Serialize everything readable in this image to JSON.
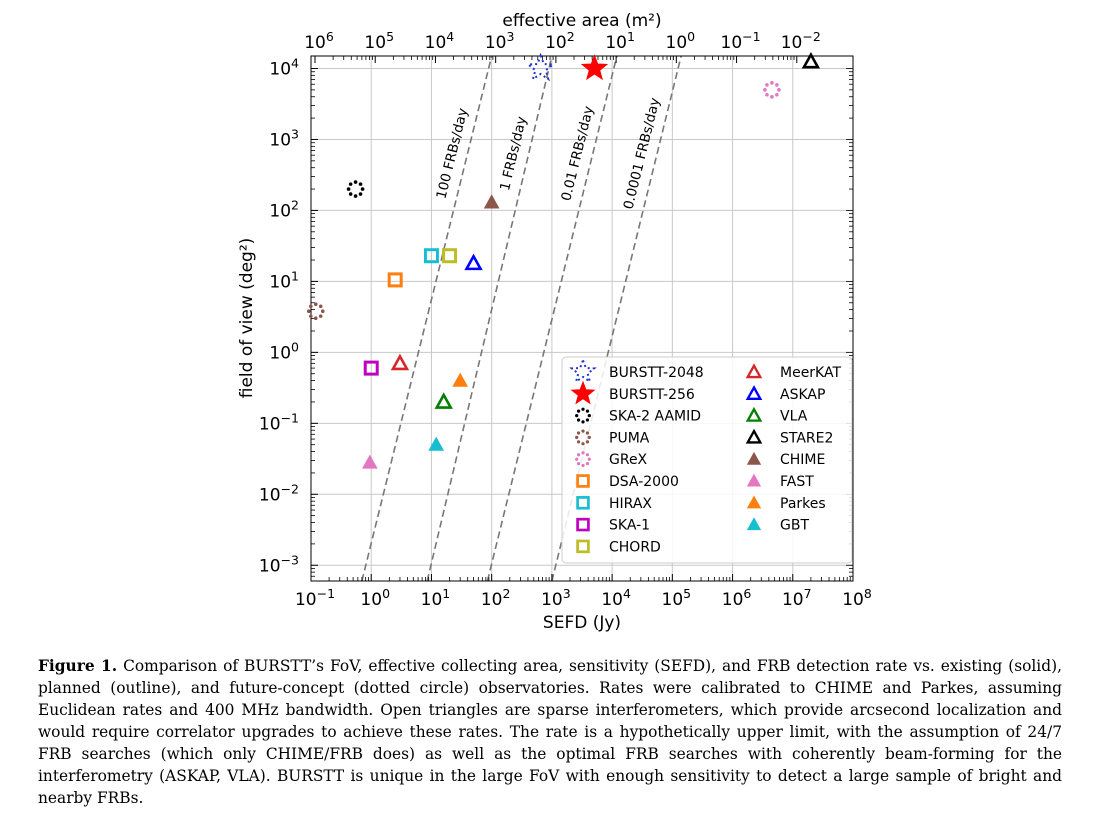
{
  "chart_data": {
    "type": "scatter",
    "xlabel": "SEFD (Jy)",
    "ylabel": "field of view (deg²)",
    "top_label": "effective area (m²)",
    "xscale": "log",
    "yscale": "log",
    "xlim": [
      0.1,
      100000000
    ],
    "ylim": [
      0.0006,
      15000
    ],
    "grid": true,
    "legend_position": "lower-right",
    "x_ticks": [
      {
        "value": 0.1,
        "base": "10",
        "exp": "−1"
      },
      {
        "value": 1,
        "base": "10",
        "exp": "0"
      },
      {
        "value": 10,
        "base": "10",
        "exp": "1"
      },
      {
        "value": 100,
        "base": "10",
        "exp": "2"
      },
      {
        "value": 1000,
        "base": "10",
        "exp": "3"
      },
      {
        "value": 10000,
        "base": "10",
        "exp": "4"
      },
      {
        "value": 100000,
        "base": "10",
        "exp": "5"
      },
      {
        "value": 1000000,
        "base": "10",
        "exp": "6"
      },
      {
        "value": 10000000,
        "base": "10",
        "exp": "7"
      },
      {
        "value": 100000000,
        "base": "10",
        "exp": "8"
      }
    ],
    "y_ticks": [
      {
        "value": 0.001,
        "base": "10",
        "exp": "−3"
      },
      {
        "value": 0.01,
        "base": "10",
        "exp": "−2"
      },
      {
        "value": 0.1,
        "base": "10",
        "exp": "−1"
      },
      {
        "value": 1,
        "base": "10",
        "exp": "0"
      },
      {
        "value": 10,
        "base": "10",
        "exp": "1"
      },
      {
        "value": 100,
        "base": "10",
        "exp": "2"
      },
      {
        "value": 1000,
        "base": "10",
        "exp": "3"
      },
      {
        "value": 10000,
        "base": "10",
        "exp": "4"
      }
    ],
    "top_ticks": [
      {
        "base": "10",
        "exp": "6"
      },
      {
        "base": "10",
        "exp": "5"
      },
      {
        "base": "10",
        "exp": "4"
      },
      {
        "base": "10",
        "exp": "3"
      },
      {
        "base": "10",
        "exp": "2"
      },
      {
        "base": "10",
        "exp": "1"
      },
      {
        "base": "10",
        "exp": "0"
      },
      {
        "base": "10",
        "exp": "−1"
      },
      {
        "base": "10",
        "exp": "−2"
      }
    ],
    "rate_lines": [
      {
        "label": "100 FRBs/day",
        "x_at_min_y": 0.7,
        "x_at_max_y": 100
      },
      {
        "label": "1 FRBs/day",
        "x_at_min_y": 8.5,
        "x_at_max_y": 1000
      },
      {
        "label": "0.01 FRBs/day",
        "x_at_min_y": 85,
        "x_at_max_y": 12000
      },
      {
        "label": "0.0001 FRBs/day",
        "x_at_min_y": 1000,
        "x_at_max_y": 140000
      }
    ],
    "series": [
      {
        "name": "BURSTT-2048",
        "marker": "star",
        "style": "dotted",
        "color": "#2233cc",
        "x": 650,
        "y": 10000
      },
      {
        "name": "BURSTT-256",
        "marker": "star",
        "style": "filled",
        "color": "#ff0000",
        "x": 5100,
        "y": 10000
      },
      {
        "name": "SKA-2 AAMID",
        "marker": "circle",
        "style": "dotted",
        "color": "#000000",
        "x": 0.55,
        "y": 200
      },
      {
        "name": "PUMA",
        "marker": "circle",
        "style": "dotted",
        "color": "#8c564b",
        "x": 0.12,
        "y": 3.8
      },
      {
        "name": "GReX",
        "marker": "circle",
        "style": "dotted",
        "color": "#e377c2",
        "x": 4500000,
        "y": 5000
      },
      {
        "name": "DSA-2000",
        "marker": "square",
        "style": "outline",
        "color": "#ff7f0e",
        "x": 2.5,
        "y": 10.5
      },
      {
        "name": "HIRAX",
        "marker": "square",
        "style": "outline",
        "color": "#17becf",
        "x": 10,
        "y": 23
      },
      {
        "name": "SKA-1",
        "marker": "square",
        "style": "outline",
        "color": "#c000c0",
        "x": 1,
        "y": 0.6
      },
      {
        "name": "CHORD",
        "marker": "square",
        "style": "outline",
        "color": "#bcbd22",
        "x": 20,
        "y": 23
      },
      {
        "name": "MeerKAT",
        "marker": "triangle",
        "style": "outline",
        "color": "#d62728",
        "x": 3,
        "y": 0.7
      },
      {
        "name": "ASKAP",
        "marker": "triangle",
        "style": "outline",
        "color": "#0000ff",
        "x": 50,
        "y": 18
      },
      {
        "name": "VLA",
        "marker": "triangle",
        "style": "outline",
        "color": "#008000",
        "x": 16,
        "y": 0.2
      },
      {
        "name": "STARE2",
        "marker": "triangle",
        "style": "outline",
        "color": "#000000",
        "x": 20000000,
        "y": 12500
      },
      {
        "name": "CHIME",
        "marker": "triangle",
        "style": "filled",
        "color": "#8c564b",
        "x": 100,
        "y": 130
      },
      {
        "name": "FAST",
        "marker": "triangle",
        "style": "filled",
        "color": "#e377c2",
        "x": 0.95,
        "y": 0.028
      },
      {
        "name": "Parkes",
        "marker": "triangle",
        "style": "filled",
        "color": "#ff7f0e",
        "x": 30,
        "y": 0.4
      },
      {
        "name": "GBT",
        "marker": "triangle",
        "style": "filled",
        "color": "#17becf",
        "x": 12,
        "y": 0.05
      }
    ]
  },
  "caption": {
    "label": "Figure 1.",
    "text": "Comparison of BURSTT’s FoV, effective collecting area, sensitivity (SEFD), and FRB detection rate vs. existing (solid), planned (outline), and future-concept (dotted circle) observatories. Rates were calibrated to CHIME and Parkes, assuming Euclidean rates and 400 MHz bandwidth. Open triangles are sparse interferometers, which provide arcsecond localization and would require correlator upgrades to achieve these rates. The rate is a hypothetically upper limit, with the assumption of 24/7 FRB searches (which only CHIME/FRB does) as well as the optimal FRB searches with coherently beam-forming for the interferometry (ASKAP, VLA). BURSTT is unique in the large FoV with enough sensitivity to detect a large sample of bright and nearby FRBs."
  }
}
